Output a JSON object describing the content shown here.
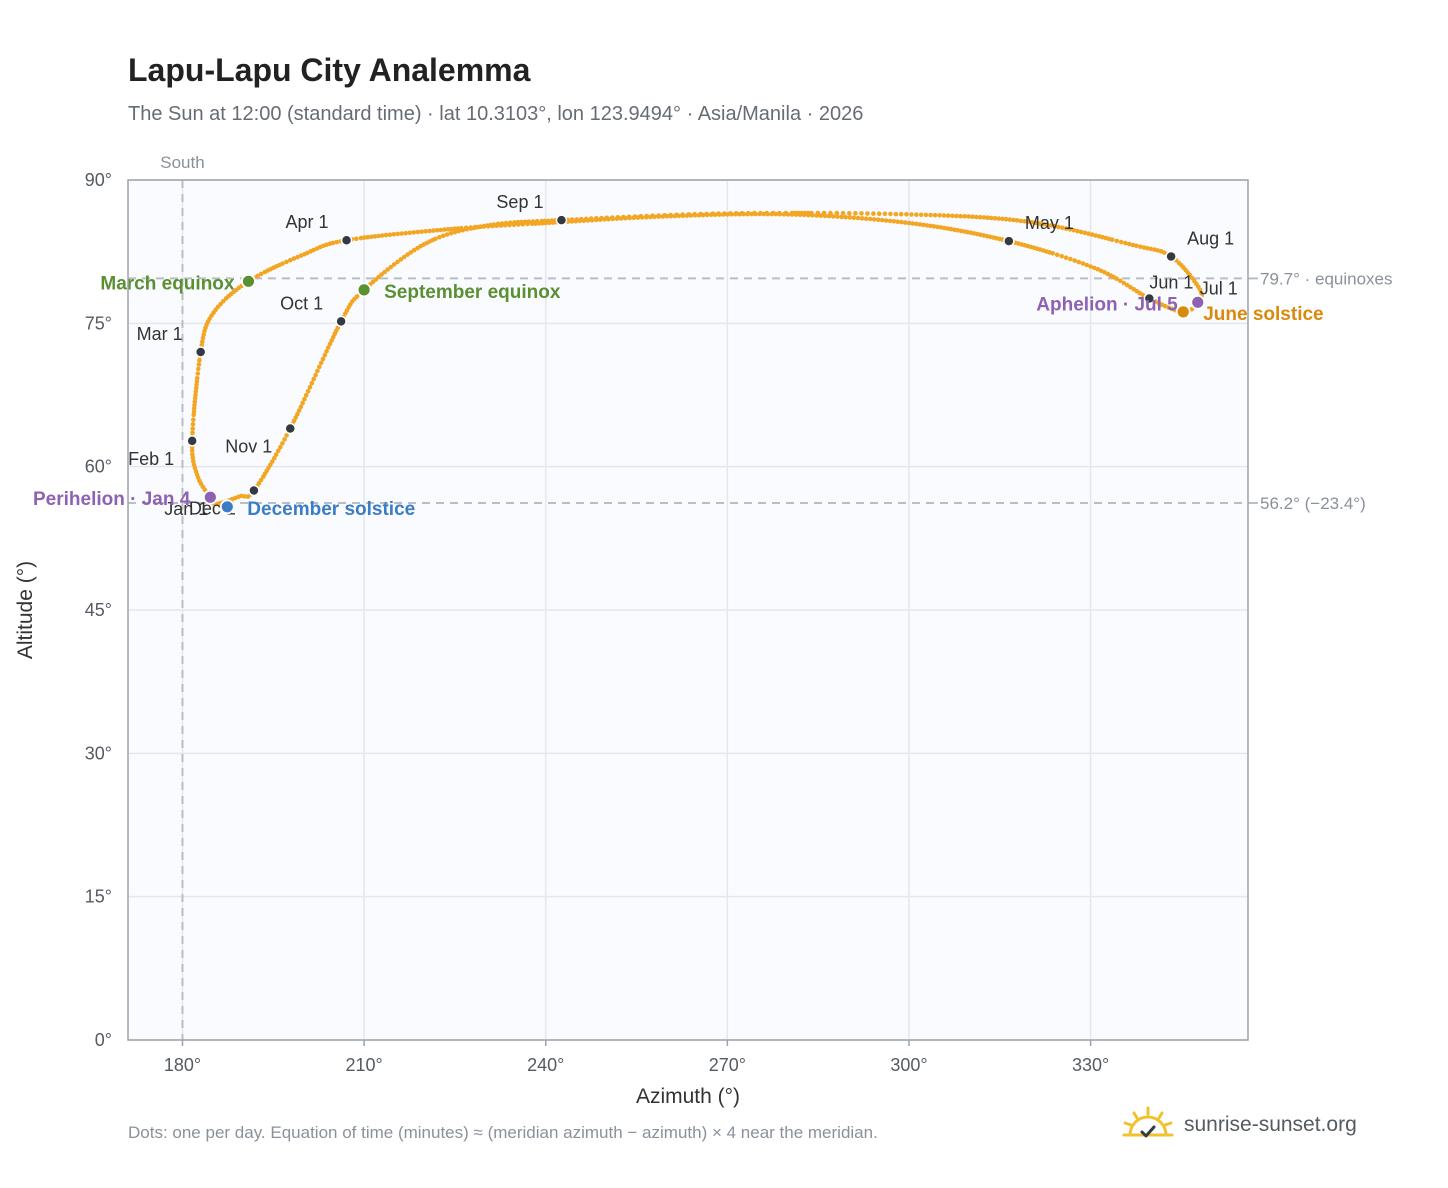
{
  "title": "Lapu-Lapu City Analemma",
  "subtitle": "The Sun at 12:00 (standard time) · lat 10.3103°, lon 123.9494° · Asia/Manila · 2026",
  "footnote": "Dots: one per day. Equation of time (minutes) ≈ (meridian azimuth − azimuth) × 4 near the meridian.",
  "brand": {
    "name": "sunrise-sunset.org",
    "icon": "sun-logo-icon"
  },
  "colors": {
    "curve": "#f2a623",
    "month_marker": "#333a44",
    "equinox": "#5a8f32",
    "december_solstice": "#3b7dc4",
    "june_solstice": "#d98a0e",
    "perihelion_aphelion": "#8e62b3",
    "reference_line": "#b9bec6",
    "plot_bg": "#f9fbfe",
    "grid": "#e3e8ee",
    "frame": "#9aa3ae"
  },
  "chart_data": {
    "type": "scatter",
    "title": "Lapu-Lapu City Analemma",
    "subtitle": "The Sun at 12:00 (standard time) · lat 10.3103°, lon 123.9494° · Asia/Manila · 2026",
    "xlabel": "Azimuth (°)",
    "ylabel": "Altitude (°)",
    "xlim": [
      171,
      356
    ],
    "ylim": [
      0,
      90
    ],
    "x_ticks": [
      180,
      210,
      240,
      270,
      300,
      330
    ],
    "x_tick_labels": [
      "180°",
      "210°",
      "240°",
      "270°",
      "300°",
      "330°"
    ],
    "y_ticks": [
      0,
      15,
      30,
      45,
      60,
      75,
      90
    ],
    "y_tick_labels": [
      "0°",
      "15°",
      "30°",
      "45°",
      "60°",
      "75°",
      "90°"
    ],
    "grid": true,
    "meridian": {
      "azimuth": 180,
      "label": "South"
    },
    "reference_lines": [
      {
        "altitude": 79.7,
        "label": "79.7° · equinoxes"
      },
      {
        "altitude": 56.2,
        "label": "56.2° (−23.4°)"
      }
    ],
    "curve_anchors": [
      {
        "x": 184.6,
        "y": 56.8
      },
      {
        "x": 185.5,
        "y": 56.1
      },
      {
        "x": 189.5,
        "y": 56.9
      },
      {
        "x": 191.8,
        "y": 57.5
      },
      {
        "x": 197.8,
        "y": 64.0
      },
      {
        "x": 206.2,
        "y": 75.2
      },
      {
        "x": 210.0,
        "y": 78.5
      },
      {
        "x": 220.0,
        "y": 83.3
      },
      {
        "x": 230.0,
        "y": 85.2
      },
      {
        "x": 242.6,
        "y": 85.8
      },
      {
        "x": 270.0,
        "y": 86.5
      },
      {
        "x": 300.0,
        "y": 86.4
      },
      {
        "x": 320.0,
        "y": 85.6
      },
      {
        "x": 337.0,
        "y": 83.2
      },
      {
        "x": 343.3,
        "y": 82.0
      },
      {
        "x": 348.0,
        "y": 78.6
      },
      {
        "x": 347.7,
        "y": 77.2
      },
      {
        "x": 345.3,
        "y": 76.2
      },
      {
        "x": 339.7,
        "y": 77.6
      },
      {
        "x": 331.0,
        "y": 80.7
      },
      {
        "x": 316.5,
        "y": 83.6
      },
      {
        "x": 300.0,
        "y": 85.5
      },
      {
        "x": 280.0,
        "y": 86.4
      },
      {
        "x": 260.0,
        "y": 86.2
      },
      {
        "x": 240.0,
        "y": 85.5
      },
      {
        "x": 225.0,
        "y": 84.9
      },
      {
        "x": 207.1,
        "y": 83.7
      },
      {
        "x": 200.0,
        "y": 82.2
      },
      {
        "x": 190.9,
        "y": 79.4
      },
      {
        "x": 185.0,
        "y": 76.0
      },
      {
        "x": 183.0,
        "y": 72.0
      },
      {
        "x": 181.6,
        "y": 62.7
      },
      {
        "x": 182.5,
        "y": 59.0
      },
      {
        "x": 184.6,
        "y": 56.8
      }
    ],
    "month_markers": [
      {
        "label": "Jan 1",
        "x": 184.6,
        "y": 56.8
      },
      {
        "label": "Feb 1",
        "x": 181.6,
        "y": 62.7
      },
      {
        "label": "Mar 1",
        "x": 183.0,
        "y": 72.0
      },
      {
        "label": "Apr 1",
        "x": 207.1,
        "y": 83.7
      },
      {
        "label": "May 1",
        "x": 316.5,
        "y": 83.6
      },
      {
        "label": "Jun 1",
        "x": 339.7,
        "y": 77.6
      },
      {
        "label": "Jul 1",
        "x": 347.7,
        "y": 77.2
      },
      {
        "label": "Aug 1",
        "x": 343.3,
        "y": 82.0
      },
      {
        "label": "Sep 1",
        "x": 242.6,
        "y": 85.8
      },
      {
        "label": "Oct 1",
        "x": 206.2,
        "y": 75.2
      },
      {
        "label": "Nov 1",
        "x": 197.8,
        "y": 64.0
      },
      {
        "label": "Dec 1",
        "x": 191.8,
        "y": 57.5
      }
    ],
    "events": [
      {
        "label": "March equinox",
        "x": 190.9,
        "y": 79.4,
        "color_key": "equinox"
      },
      {
        "label": "September equinox",
        "x": 210.0,
        "y": 78.5,
        "color_key": "equinox"
      },
      {
        "label": "December solstice",
        "x": 187.4,
        "y": 55.8,
        "color_key": "december_solstice"
      },
      {
        "label": "June solstice",
        "x": 345.3,
        "y": 76.2,
        "color_key": "june_solstice"
      },
      {
        "label": "Perihelion · Jan 4",
        "x": 184.6,
        "y": 56.8,
        "color_key": "perihelion_aphelion"
      },
      {
        "label": "Aphelion · Jul 5",
        "x": 347.7,
        "y": 77.2,
        "color_key": "perihelion_aphelion"
      }
    ]
  }
}
